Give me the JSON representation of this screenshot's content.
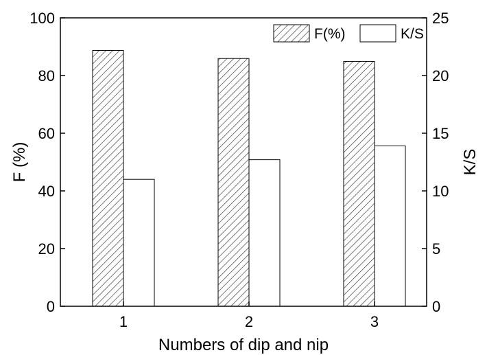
{
  "chart_data": {
    "type": "bar",
    "categories": [
      "1",
      "2",
      "3"
    ],
    "xlabel": "Numbers of dip and nip",
    "ylabel_left": "F (%)",
    "ylabel_right": "K/S",
    "ylim_left": [
      0,
      100
    ],
    "ylim_right": [
      0,
      25
    ],
    "yticks_left": [
      "0",
      "20",
      "40",
      "60",
      "80",
      "100"
    ],
    "yticks_right": [
      "0",
      "5",
      "10",
      "15",
      "20",
      "25"
    ],
    "legend_position": "top-right",
    "series": [
      {
        "name": "F(%)",
        "axis": "left",
        "pattern": "diagonal-hatch",
        "values": [
          88.7,
          85.9,
          84.9
        ]
      },
      {
        "name": "K/S",
        "axis": "right",
        "pattern": "none",
        "values": [
          11.0,
          12.7,
          13.9
        ]
      }
    ]
  }
}
